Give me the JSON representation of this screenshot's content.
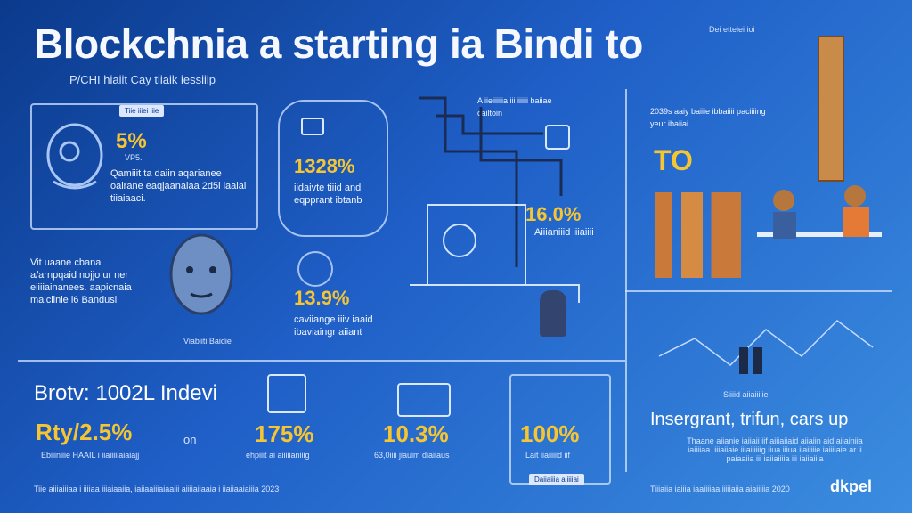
{
  "header": {
    "title": "Blockchnia a starting ia Bindi to",
    "subtitle": "P/CHI hiaiit Cay tiiaik iessiiip",
    "corner_note": "Dei etteiei ioi"
  },
  "left_panel": {
    "badge": "Tiie iiiei iiie",
    "stat": "5%",
    "stat_label": "VP5.",
    "text": "Qamiiit ta daiin aqarianee oairane eaqjaanaiaa 2d5i iaaiai tiiaiaaci.",
    "side_text": "Vit uaane cbanal a/arnpqaid nojjo ur ner eiiiiainanees. aapicnaia maiciinie i6 Bandusi",
    "person_caption": "Viabiiti Baidie"
  },
  "center_stats": {
    "stat_1": "1328%",
    "stat_1_text": "iidaivte tiiid and eqpprant ibtanb",
    "stat_2": "13.9%",
    "stat_2_text": "caviiange iiiv iaaid ibaviaingr aiiant"
  },
  "flow": {
    "note": "A iieiiiiiia iii iiiiii baiiae cailtoin",
    "stat": "16.0%",
    "stat_text": "Aiiianiiid iiiaiiii"
  },
  "right_panel": {
    "note": "2039s aaiy baiiie ibbaiiii paciiiing yeur ibaiiai",
    "to_label": "TO",
    "caption": "Siiiid aiiaiiiiie",
    "heading": "Insergrant, trifun, cars up",
    "text": "Thaane aiianie iaiiaii iif aiiiaiiaid aiiaiin aid aiiainiia iaiiiiaa. iiiaiiaie iiiaiiiiiig iiua iiiua iiaiiiiie iaiiiiaie ar ii paiaaiia iii iaiiaiiiia iii iaiiaiiia",
    "footer_left": "Tiiiaiia iaiiia iaaiiiiaa iiiiiaiia aiaiiiiia 2020",
    "brand": "dkpel"
  },
  "bottom": {
    "heading": "Brotv: 1002L Indevi",
    "stats": [
      {
        "value": "Rty/2.5%",
        "suffix": "on",
        "label": "Ebiiiniiie HAAIL i iiaiiiiiaiaiajj"
      },
      {
        "value": "175%",
        "suffix": "",
        "label": "ehpiiit ai aiiiiianiiig"
      },
      {
        "value": "10.3%",
        "suffix": "",
        "label": "63,0iiii jiauim diaiiaus"
      },
      {
        "value": "100%",
        "suffix": "",
        "label": "Lait iiaiiiiid iif"
      }
    ],
    "badge": "Daiiaiiia aiiiiiai",
    "footer": "Tiie aiiiaiiiaa i iiiiaa iiiaiaaiia, iaiiaaiiiaiaaiii aiiiiaiiaaia i iiaiiaaiaiiia 2023"
  },
  "colors": {
    "accent": "#f6c532",
    "background": "#1f5fc7",
    "line": "#d2e4ff"
  }
}
